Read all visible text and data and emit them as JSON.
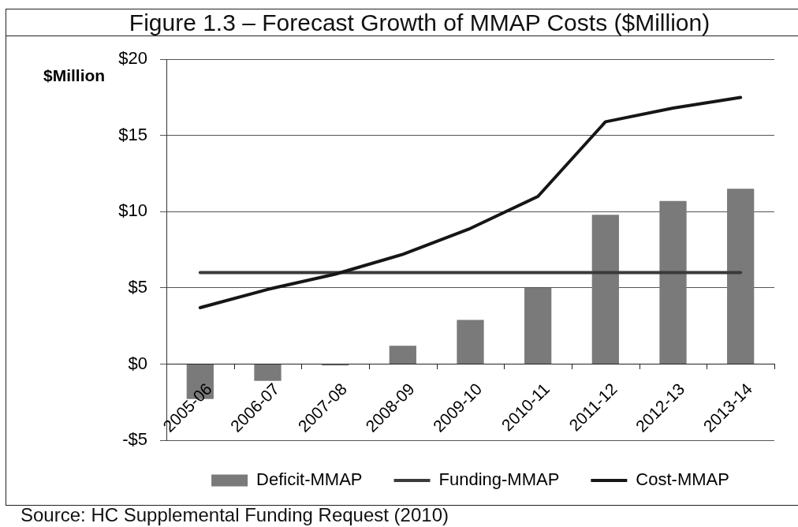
{
  "chart_data": {
    "type": "bar",
    "title": "Figure 1.3 – Forecast Growth of MMAP Costs ($Million)",
    "ylabel": "$Million",
    "categories": [
      "2005-06",
      "2006-07",
      "2007-08",
      "2008-09",
      "2009-10",
      "2010-11",
      "2011-12",
      "2012-13",
      "2013-14"
    ],
    "series": [
      {
        "name": "Deficit-MMAP",
        "type": "bar",
        "color": "#7a7a7a",
        "values": [
          -2.3,
          -1.1,
          -0.1,
          1.2,
          2.9,
          5.0,
          9.8,
          10.7,
          11.5
        ]
      },
      {
        "name": "Funding-MMAP",
        "type": "line",
        "color": "#3a3a3a",
        "values": [
          6.0,
          6.0,
          6.0,
          6.0,
          6.0,
          6.0,
          6.0,
          6.0,
          6.0
        ]
      },
      {
        "name": "Cost-MMAP",
        "type": "line",
        "color": "#161616",
        "values": [
          3.7,
          4.9,
          5.9,
          7.2,
          8.9,
          11.0,
          15.9,
          16.8,
          17.5
        ]
      }
    ],
    "ylim": [
      -5,
      20
    ],
    "yticks": [
      {
        "value": -5,
        "label": "-$5"
      },
      {
        "value": 0,
        "label": "$0"
      },
      {
        "value": 5,
        "label": "$5"
      },
      {
        "value": 10,
        "label": "$10"
      },
      {
        "value": 15,
        "label": "$15"
      },
      {
        "value": 20,
        "label": "$20"
      }
    ],
    "grid": "y",
    "legend": "bottom",
    "annotations": [
      "Source: HC Supplemental Funding Request (2010)"
    ]
  }
}
